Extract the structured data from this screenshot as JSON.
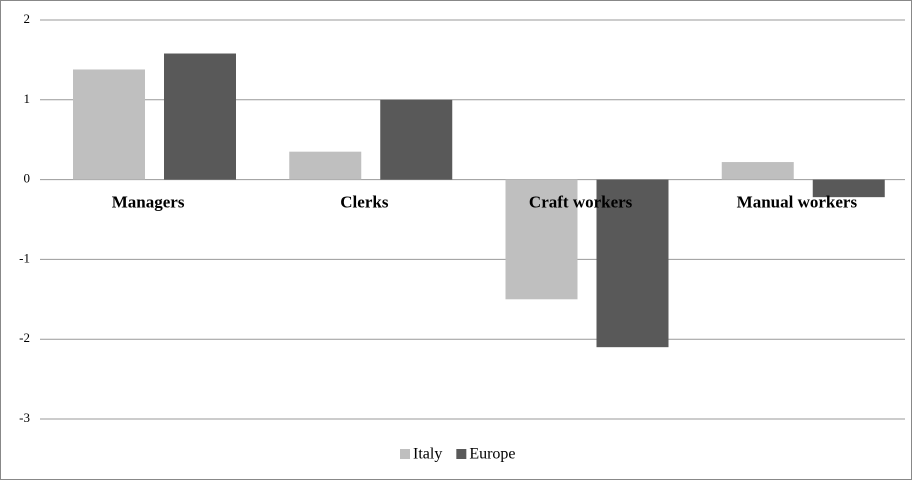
{
  "chart_data": {
    "type": "bar",
    "categories": [
      "Managers",
      "Clerks",
      "Craft workers",
      "Manual workers"
    ],
    "series": [
      {
        "name": "Italy",
        "color": "#bfbfbf",
        "values": [
          1.38,
          0.35,
          -1.5,
          0.22
        ]
      },
      {
        "name": "Europe",
        "color": "#595959",
        "values": [
          1.58,
          1.0,
          -2.1,
          -0.22
        ]
      }
    ],
    "ylim": [
      -3,
      2
    ],
    "yticks": [
      -3,
      -2,
      -1,
      0,
      1,
      2
    ],
    "grid": true,
    "legend": "bottom"
  }
}
